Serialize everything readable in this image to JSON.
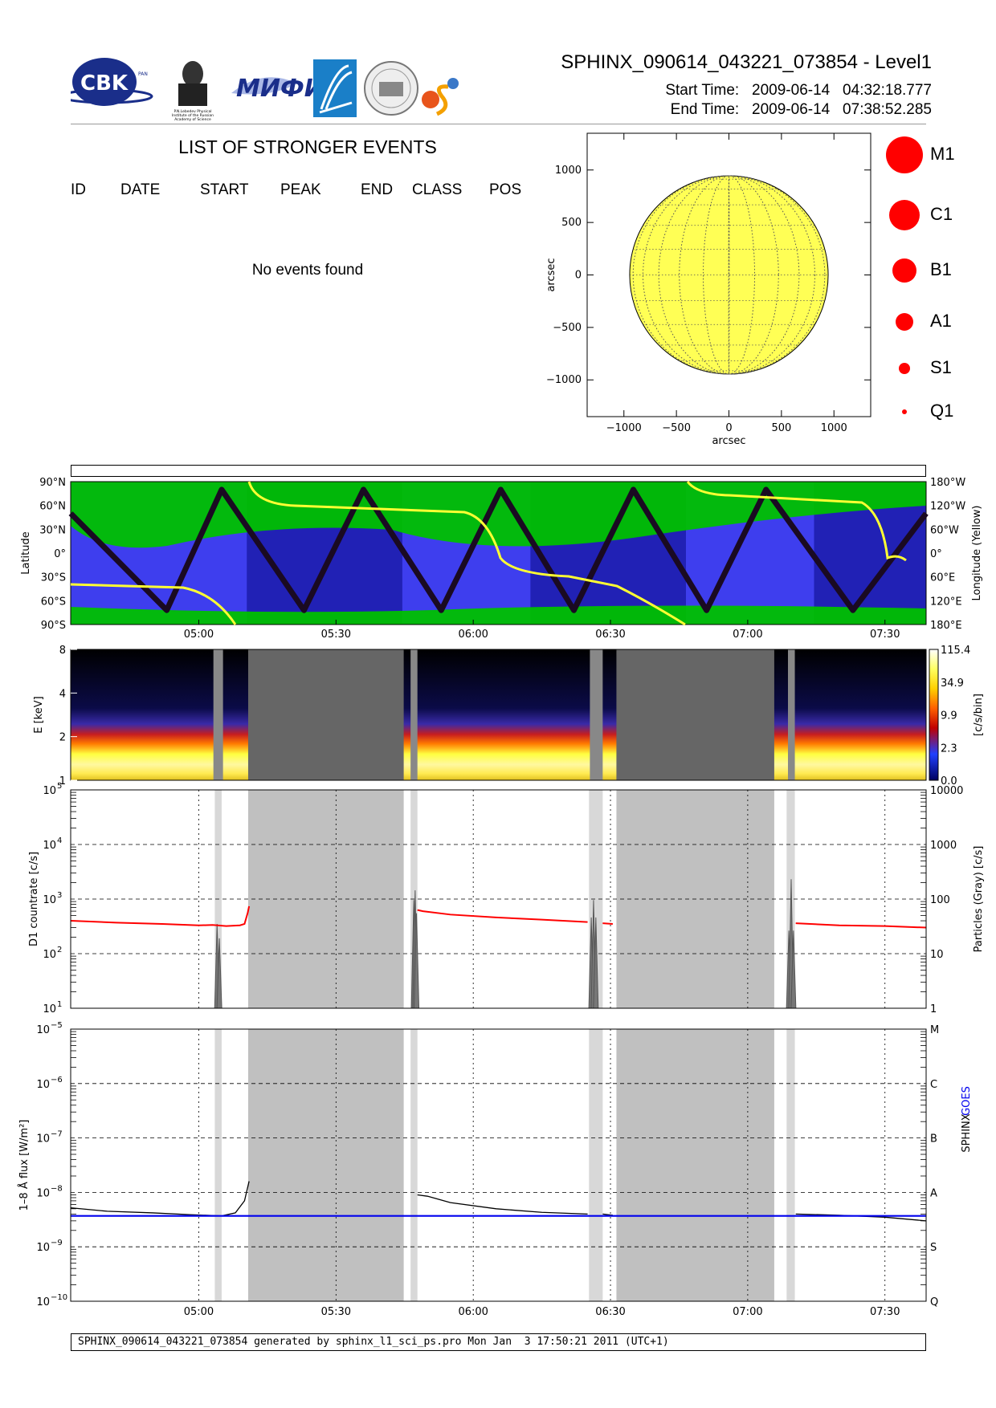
{
  "header": {
    "title": "SPHINX_090614_043221_073854 - Level1",
    "start_time_label": "Start Time:",
    "start_time_value": "2009-06-14   04:32:18.777",
    "end_time_label": "End Time:",
    "end_time_value": "2009-06-14   07:38:52.285"
  },
  "logos": {
    "cbk_text": "CBK",
    "cbk_sub": "PAN",
    "lebedev_text": [
      "P.N.Lebedev Physical",
      "Institute of the Russian",
      "Academy of Science"
    ],
    "mifi_text": "МИФИ"
  },
  "events": {
    "title": "LIST OF STRONGER EVENTS",
    "columns": [
      "ID",
      "DATE",
      "START",
      "PEAK",
      "END",
      "CLASS",
      "POS"
    ],
    "empty_message": "No events found"
  },
  "legend": {
    "classes": [
      "M1",
      "C1",
      "B1",
      "A1",
      "S1",
      "Q1"
    ],
    "marker_color": "#ff0000"
  },
  "footer": {
    "text": "SPHINX_090614_043221_073854 generated by sphinx_l1_sci_ps.pro Mon Jan  3 17:50:21 2011 (UTC+1)"
  },
  "colors": {
    "sun_fill": "#ffff55",
    "orbit_blue": "#3e3eee",
    "orbit_dark": "#2121b5",
    "orbit_green": "#00c000",
    "goes_line": "#0000ee",
    "d1_line": "#ff0000",
    "shade_dark": "#666666",
    "shade_light": "#c0c0c0",
    "shade_pale": "#d8d8d8"
  },
  "chart_data": [
    {
      "type": "scatter",
      "id": "sun-map",
      "xlabel": "arcsec",
      "ylabel": "arcsec",
      "xlim": [
        -1350,
        1350
      ],
      "ylim": [
        -1350,
        1350
      ],
      "xticks": [
        -1000,
        -500,
        0,
        500,
        1000
      ],
      "yticks": [
        -1000,
        -500,
        0,
        500,
        1000
      ],
      "xtick_labels": [
        "−1000",
        "−500",
        "0",
        "500",
        "1000"
      ],
      "ytick_labels": [
        "−1000",
        "−500",
        "0",
        "500",
        "1000"
      ],
      "solar_radius": 945,
      "events": []
    },
    {
      "type": "line",
      "id": "orbit",
      "ylabel_left": "Latitude",
      "ylabel_right": "Longitude (Yellow)",
      "xlim_minutes": [
        272,
        459
      ],
      "left_ticks": [
        "90°N",
        "60°N",
        "30°N",
        "0°",
        "30°S",
        "60°S",
        "90°S"
      ],
      "right_ticks": [
        "180°W",
        "120°W",
        "60°W",
        "0°",
        "60°E",
        "120°E",
        "180°E"
      ],
      "x_ticks": [
        "05:00",
        "05:30",
        "06:00",
        "06:30",
        "07:00",
        "07:30"
      ],
      "latitude_track": [
        [
          272,
          50
        ],
        [
          293,
          -72
        ],
        [
          305,
          80
        ],
        [
          323,
          -72
        ],
        [
          336,
          80
        ],
        [
          353,
          -72
        ],
        [
          366,
          80
        ],
        [
          382,
          -72
        ],
        [
          395,
          80
        ],
        [
          411,
          -72
        ],
        [
          424,
          80
        ],
        [
          443,
          -72
        ],
        [
          459,
          50
        ]
      ],
      "eclipse_intervals": [
        [
          310.5,
          344.5
        ],
        [
          372.5,
          406.5
        ],
        [
          434.5,
          459
        ]
      ]
    },
    {
      "type": "heatmap",
      "id": "spectrogram",
      "ylabel": "E [keV]",
      "y_ticks": [
        "1",
        "2",
        "4",
        "8"
      ],
      "colorbar_label": "[c/s/bin]",
      "colorbar_ticks": [
        "0.0",
        "2.3",
        "9.9",
        "34.9",
        "115.4"
      ],
      "x_ticks": [
        "05:00",
        "05:30",
        "06:00",
        "06:30",
        "07:00",
        "07:30"
      ]
    },
    {
      "type": "line",
      "id": "d1-countrate",
      "ylabel_left": "D1 countrate [c/s]",
      "ylabel_right": "Particles (Gray) [c/s]",
      "yscale": "log",
      "ylim": [
        10,
        100000
      ],
      "left_ticks": [
        "10",
        "10",
        "10",
        "10",
        "10"
      ],
      "left_exps": [
        "1",
        "2",
        "3",
        "4",
        "5"
      ],
      "right_ticks": [
        "1",
        "10",
        "100",
        "1000",
        "10000"
      ],
      "series": [
        {
          "color": "#ff0000",
          "points": [
            [
              272,
              400
            ],
            [
              282,
              370
            ],
            [
              292,
              350
            ],
            [
              300,
              330
            ],
            [
              303,
              335
            ],
            [
              306,
              320
            ],
            [
              309,
              330
            ],
            [
              310,
              350
            ],
            [
              310.7,
              560
            ],
            [
              311,
              740
            ]
          ]
        }
      ]
    },
    {
      "type": "line",
      "id": "goes-flux",
      "ylabel_left": "1–8 Å flux [W/m²]",
      "ylabel_right_1": "SPHINX",
      "ylabel_right_2": "GOES",
      "yscale": "log",
      "ylim": [
        1e-10,
        1e-05
      ],
      "left_exps": [
        "−10",
        "−9",
        "−8",
        "−7",
        "−6",
        "−5"
      ],
      "right_ticks": [
        "Q",
        "S",
        "A",
        "B",
        "C",
        "M"
      ],
      "x_ticks": [
        "05:00",
        "05:30",
        "06:00",
        "06:30",
        "07:00",
        "07:30"
      ],
      "series": [
        {
          "name": "SPHINX",
          "color": "#000000",
          "points": [
            [
              272,
              5.2e-09
            ],
            [
              280,
              4.5e-09
            ],
            [
              290,
              4.2e-09
            ],
            [
              298,
              3.9e-09
            ],
            [
              305,
              3.7e-09
            ],
            [
              308,
              4.2e-09
            ],
            [
              310,
              7e-09
            ],
            [
              311,
              1.6e-08
            ]
          ]
        },
        {
          "name": "GOES",
          "color": "#0000ee",
          "points": [
            [
              272,
              3.7e-09
            ],
            [
              459,
              3.7e-09
            ]
          ]
        }
      ]
    }
  ]
}
